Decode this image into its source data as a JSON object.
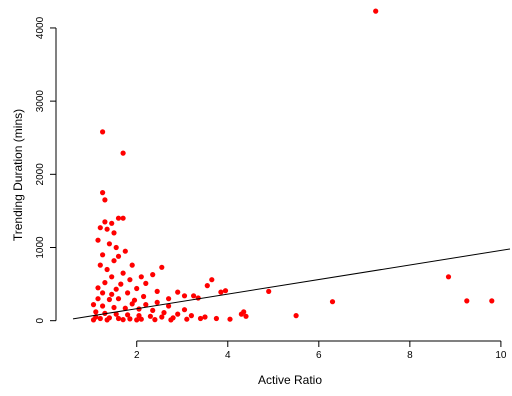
{
  "chart_data": {
    "type": "scatter",
    "title": "",
    "xlabel": "Active Ratio",
    "ylabel": "Trending Duration (mins)",
    "xlim": [
      0.6,
      10.2
    ],
    "ylim": [
      -100,
      4300
    ],
    "x_ticks": [
      2,
      4,
      6,
      8,
      10
    ],
    "y_ticks": [
      0,
      1000,
      2000,
      3000,
      4000
    ],
    "x_tick_labels": [
      "2",
      "4",
      "6",
      "8",
      "10"
    ],
    "y_tick_labels": [
      "0",
      "1000",
      "2000",
      "3000",
      "4000"
    ],
    "point_color": "#ff0000",
    "line_color": "#000000",
    "grid": false,
    "box": "left-bottom axes only",
    "series": [
      {
        "points": [
          [
            7.25,
            4230
          ],
          [
            1.25,
            2580
          ],
          [
            1.7,
            2290
          ],
          [
            1.25,
            1750
          ],
          [
            1.3,
            1650
          ],
          [
            1.6,
            1400
          ],
          [
            1.7,
            1400
          ],
          [
            1.3,
            1350
          ],
          [
            1.45,
            1330
          ],
          [
            1.2,
            1270
          ],
          [
            1.35,
            1250
          ],
          [
            1.5,
            1200
          ],
          [
            1.15,
            1100
          ],
          [
            1.4,
            1050
          ],
          [
            1.55,
            1000
          ],
          [
            1.75,
            950
          ],
          [
            1.25,
            900
          ],
          [
            1.6,
            880
          ],
          [
            1.9,
            760
          ],
          [
            1.5,
            820
          ],
          [
            1.2,
            760
          ],
          [
            1.35,
            700
          ],
          [
            1.7,
            650
          ],
          [
            1.45,
            600
          ],
          [
            1.85,
            560
          ],
          [
            2.1,
            600
          ],
          [
            2.55,
            730
          ],
          [
            2.35,
            630
          ],
          [
            2.2,
            510
          ],
          [
            1.65,
            500
          ],
          [
            1.3,
            520
          ],
          [
            1.15,
            450
          ],
          [
            1.55,
            430
          ],
          [
            2.0,
            440
          ],
          [
            2.45,
            400
          ],
          [
            1.8,
            380
          ],
          [
            1.25,
            380
          ],
          [
            2.7,
            300
          ],
          [
            2.9,
            390
          ],
          [
            3.05,
            340
          ],
          [
            3.25,
            340
          ],
          [
            3.65,
            560
          ],
          [
            3.55,
            480
          ],
          [
            3.85,
            390
          ],
          [
            3.95,
            410
          ],
          [
            3.35,
            310
          ],
          [
            4.9,
            400
          ],
          [
            4.35,
            120
          ],
          [
            4.3,
            90
          ],
          [
            4.4,
            60
          ],
          [
            3.05,
            150
          ],
          [
            2.7,
            200
          ],
          [
            2.45,
            250
          ],
          [
            2.2,
            220
          ],
          [
            1.95,
            280
          ],
          [
            1.6,
            300
          ],
          [
            1.4,
            290
          ],
          [
            1.15,
            300
          ],
          [
            1.05,
            220
          ],
          [
            1.25,
            200
          ],
          [
            1.5,
            180
          ],
          [
            1.75,
            170
          ],
          [
            2.05,
            160
          ],
          [
            2.35,
            140
          ],
          [
            2.6,
            110
          ],
          [
            2.9,
            90
          ],
          [
            3.2,
            70
          ],
          [
            3.5,
            50
          ],
          [
            3.75,
            30
          ],
          [
            4.05,
            20
          ],
          [
            1.1,
            120
          ],
          [
            1.3,
            100
          ],
          [
            1.55,
            90
          ],
          [
            1.8,
            80
          ],
          [
            2.05,
            70
          ],
          [
            2.3,
            60
          ],
          [
            2.55,
            50
          ],
          [
            2.8,
            40
          ],
          [
            1.1,
            50
          ],
          [
            1.2,
            30
          ],
          [
            1.4,
            40
          ],
          [
            1.6,
            30
          ],
          [
            1.85,
            25
          ],
          [
            2.1,
            20
          ],
          [
            2.4,
            15
          ],
          [
            2.75,
            10
          ],
          [
            3.1,
            20
          ],
          [
            3.4,
            30
          ],
          [
            1.05,
            10
          ],
          [
            1.35,
            10
          ],
          [
            1.7,
            15
          ],
          [
            2.0,
            10
          ],
          [
            5.5,
            70
          ],
          [
            6.3,
            260
          ],
          [
            8.85,
            600
          ],
          [
            9.25,
            270
          ],
          [
            9.8,
            270
          ],
          [
            1.9,
            230
          ],
          [
            2.15,
            330
          ],
          [
            1.45,
            360
          ]
        ]
      }
    ],
    "trend_line": {
      "x": [
        0.6,
        10.2
      ],
      "y": [
        25,
        980
      ]
    }
  }
}
